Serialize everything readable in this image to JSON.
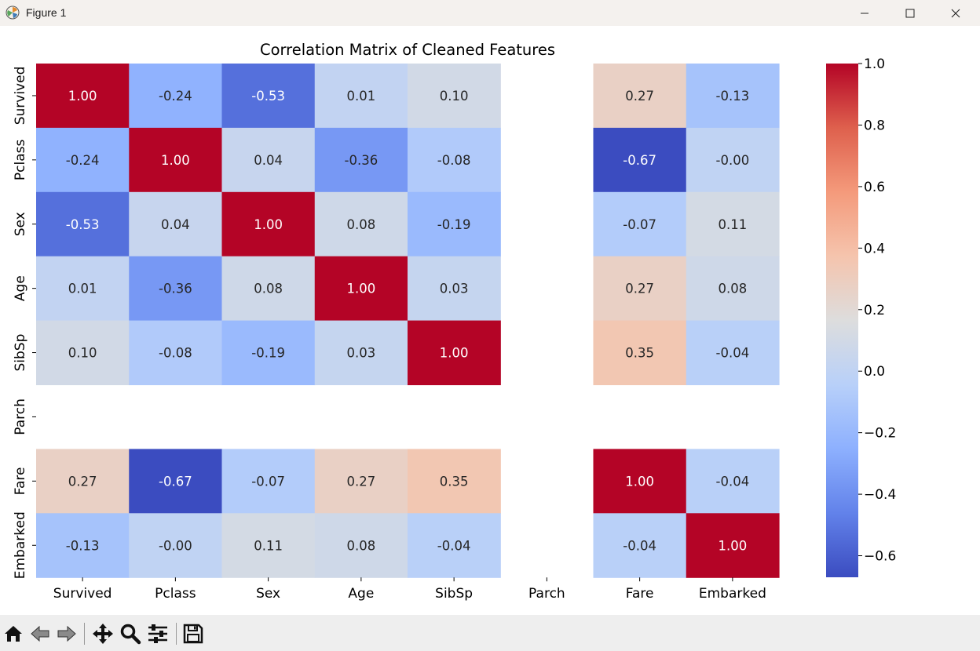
{
  "window": {
    "title": "Figure 1"
  },
  "toolbar": {
    "buttons": [
      {
        "name": "home-icon"
      },
      {
        "name": "back-arrow-icon"
      },
      {
        "name": "forward-arrow-icon"
      },
      {
        "name": "pan-move-icon"
      },
      {
        "name": "zoom-magnifier-icon"
      },
      {
        "name": "configure-subplots-icon"
      },
      {
        "name": "save-floppy-icon"
      }
    ]
  },
  "colors": {
    "min": "#3b4cc0",
    "mid": "#dddddd",
    "max": "#b40426",
    "nan_bg": "#ffffff"
  },
  "chart_data": {
    "type": "heatmap",
    "title": "Correlation Matrix of Cleaned Features",
    "labels": [
      "Survived",
      "Pclass",
      "Sex",
      "Age",
      "SibSp",
      "Parch",
      "Fare",
      "Embarked"
    ],
    "values": [
      [
        1.0,
        -0.24,
        -0.53,
        0.01,
        0.1,
        null,
        0.27,
        -0.13
      ],
      [
        -0.24,
        1.0,
        0.04,
        -0.36,
        -0.08,
        null,
        -0.67,
        -0.0
      ],
      [
        -0.53,
        0.04,
        1.0,
        0.08,
        -0.19,
        null,
        -0.07,
        0.11
      ],
      [
        0.01,
        -0.36,
        0.08,
        1.0,
        0.03,
        null,
        0.27,
        0.08
      ],
      [
        0.1,
        -0.08,
        -0.19,
        0.03,
        1.0,
        null,
        0.35,
        -0.04
      ],
      [
        null,
        null,
        null,
        null,
        null,
        null,
        null,
        null
      ],
      [
        0.27,
        -0.67,
        -0.07,
        0.27,
        0.35,
        null,
        1.0,
        -0.04
      ],
      [
        -0.13,
        -0.0,
        0.11,
        0.08,
        -0.04,
        null,
        -0.04,
        1.0
      ]
    ],
    "colormap": "coolwarm",
    "vmin": -0.67,
    "vmax": 1.0,
    "annot_format": "0.00",
    "colorbar": {
      "ticks": [
        1.0,
        0.8,
        0.6,
        0.4,
        0.2,
        0.0,
        -0.2,
        -0.4,
        -0.6
      ],
      "tick_labels": [
        "1.0",
        "0.8",
        "0.6",
        "0.4",
        "0.2",
        "0.0",
        "−0.2",
        "−0.4",
        "−0.6"
      ]
    }
  }
}
